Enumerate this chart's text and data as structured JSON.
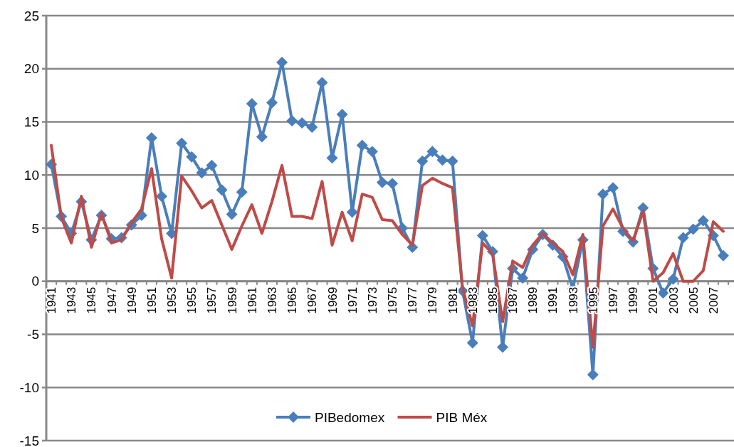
{
  "chart_data": {
    "type": "line",
    "categories": [
      "1941",
      null,
      "1943",
      null,
      "1945",
      null,
      "1947",
      null,
      "1949",
      null,
      "1951",
      null,
      "1953",
      null,
      "1955",
      null,
      "1957",
      null,
      "1959",
      null,
      "1961",
      null,
      "1963",
      null,
      "1965",
      null,
      "1967",
      null,
      "1969",
      null,
      "1971",
      null,
      "1973",
      null,
      "1975",
      null,
      "1977",
      null,
      "1979",
      null,
      "1981",
      null,
      "1983",
      null,
      "1985",
      null,
      "1987",
      null,
      "1989",
      null,
      "1991",
      null,
      "1993",
      null,
      "1995",
      null,
      "1997",
      null,
      "1999",
      null,
      "2001",
      null,
      "2003",
      null,
      "2005",
      null,
      "2007",
      null
    ],
    "series": [
      {
        "name": "PIBedomex",
        "color": "#4a7ebb",
        "marker": "diamond",
        "values": [
          11.0,
          6.1,
          4.5,
          7.5,
          3.9,
          6.2,
          4.0,
          4.1,
          5.3,
          6.2,
          13.5,
          8.0,
          4.5,
          13.0,
          11.7,
          10.2,
          10.9,
          8.6,
          6.3,
          8.4,
          16.7,
          13.6,
          16.8,
          20.6,
          15.1,
          14.9,
          14.5,
          18.7,
          11.6,
          15.7,
          6.5,
          12.8,
          12.2,
          9.3,
          9.2,
          5.0,
          3.2,
          11.3,
          12.2,
          11.4,
          11.3,
          -0.9,
          -5.8,
          4.3,
          2.8,
          -6.2,
          1.2,
          0.3,
          3.0,
          4.4,
          3.4,
          2.3,
          -0.7,
          3.9,
          -8.8,
          8.2,
          8.8,
          4.7,
          3.7,
          6.9,
          1.2,
          -1.1,
          0.2,
          4.1,
          4.9,
          5.7,
          4.3,
          2.4
        ]
      },
      {
        "name": "PIB Méx",
        "color": "#be4b48",
        "marker": "none",
        "values": [
          12.8,
          6.0,
          3.6,
          8.0,
          3.2,
          6.4,
          3.6,
          3.9,
          5.5,
          6.8,
          10.6,
          4.0,
          0.3,
          9.9,
          8.5,
          6.9,
          7.6,
          5.3,
          3.0,
          5.2,
          7.2,
          4.5,
          7.5,
          10.9,
          6.1,
          6.1,
          5.9,
          9.4,
          3.4,
          6.5,
          3.8,
          8.2,
          7.9,
          5.8,
          5.7,
          4.4,
          3.4,
          9.0,
          9.7,
          9.2,
          8.8,
          -0.6,
          -4.2,
          3.6,
          2.6,
          -3.8,
          1.9,
          1.3,
          3.4,
          4.5,
          3.6,
          2.8,
          0.6,
          4.4,
          -6.2,
          5.2,
          6.8,
          5.0,
          3.8,
          6.6,
          0.0,
          0.8,
          2.6,
          0.0,
          0.0,
          1.0,
          5.6,
          4.7
        ]
      }
    ],
    "ylim": [
      -15,
      25
    ],
    "yticks": [
      -15,
      -10,
      -5,
      0,
      5,
      10,
      15,
      20,
      25
    ],
    "grid": "y",
    "legend": "bottom"
  }
}
